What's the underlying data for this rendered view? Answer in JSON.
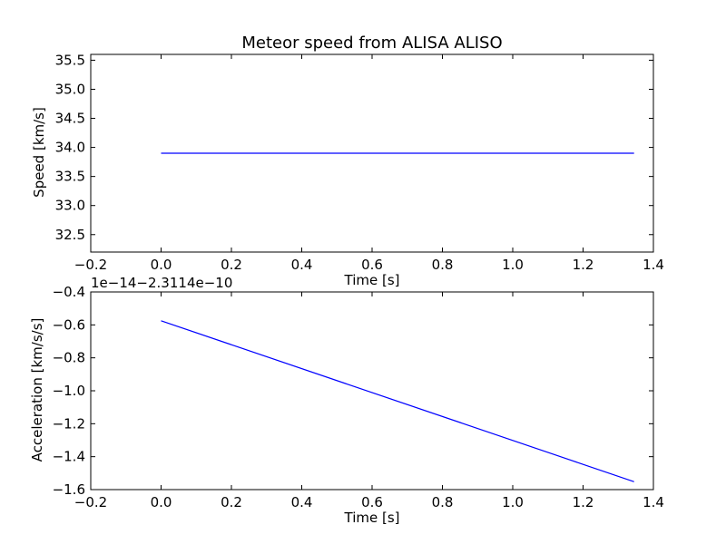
{
  "chart_data": [
    {
      "type": "line",
      "title": "Meteor speed from  ALISA ALISO",
      "xlabel": "Time [s]",
      "ylabel": "Speed [km/s]",
      "xlim": [
        -0.2,
        1.4
      ],
      "ylim": [
        32.2,
        35.6
      ],
      "xticks": [
        -0.2,
        0.0,
        0.2,
        0.4,
        0.6,
        0.8,
        1.0,
        1.2,
        1.4
      ],
      "xtick_labels": [
        "−0.2",
        "0.0",
        "0.2",
        "0.4",
        "0.6",
        "0.8",
        "1.0",
        "1.2",
        "1.4"
      ],
      "yticks": [
        32.5,
        33.0,
        33.5,
        34.0,
        34.5,
        35.0,
        35.5
      ],
      "ytick_labels": [
        "32.5",
        "33.0",
        "33.5",
        "34.0",
        "34.5",
        "35.0",
        "35.5"
      ],
      "offset_text": "",
      "grid": false,
      "color": "#0000ff",
      "series": [
        {
          "x": [
            0.0,
            1.345
          ],
          "y": [
            33.9,
            33.9
          ]
        }
      ]
    },
    {
      "type": "line",
      "title": "",
      "xlabel": "Time [s]",
      "ylabel": "Acceleration [km/s/s]",
      "xlim": [
        -0.2,
        1.4
      ],
      "ylim": [
        -1.6,
        -0.4
      ],
      "xticks": [
        -0.2,
        0.0,
        0.2,
        0.4,
        0.6,
        0.8,
        1.0,
        1.2,
        1.4
      ],
      "xtick_labels": [
        "−0.2",
        "0.0",
        "0.2",
        "0.4",
        "0.6",
        "0.8",
        "1.0",
        "1.2",
        "1.4"
      ],
      "yticks": [
        -1.6,
        -1.4,
        -1.2,
        -1.0,
        -0.8,
        -0.6,
        -0.4
      ],
      "ytick_labels": [
        "−1.6",
        "−1.4",
        "−1.2",
        "−1.0",
        "−0.8",
        "−0.6",
        "−0.4"
      ],
      "offset_text": "1e−14−2.3114e−10",
      "grid": false,
      "color": "#0000ff",
      "series": [
        {
          "x": [
            0.0,
            1.345
          ],
          "y": [
            -0.575,
            -1.552
          ]
        }
      ]
    }
  ]
}
